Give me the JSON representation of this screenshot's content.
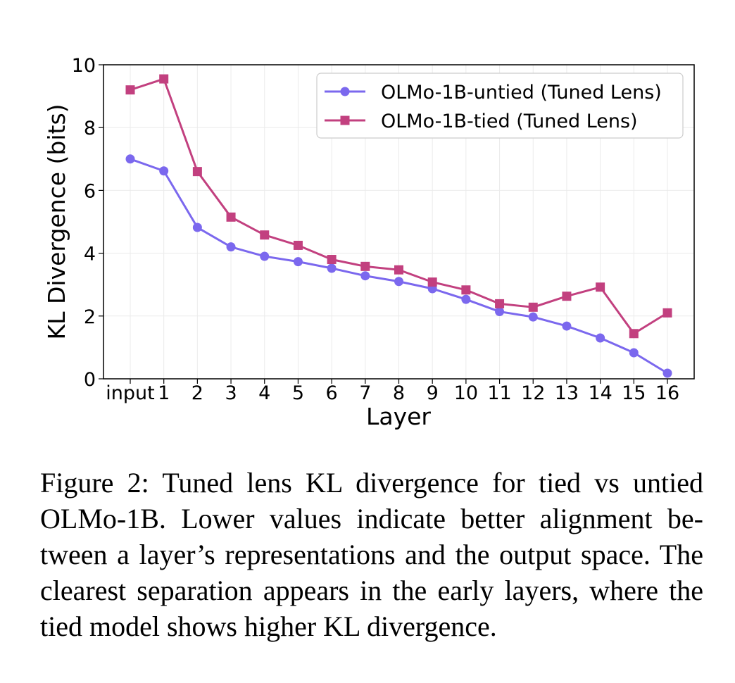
{
  "chart_data": {
    "type": "line",
    "categories": [
      "input",
      "1",
      "2",
      "3",
      "4",
      "5",
      "6",
      "7",
      "8",
      "9",
      "10",
      "11",
      "12",
      "13",
      "14",
      "15",
      "16"
    ],
    "series": [
      {
        "name": "OLMo-1B-untied (Tuned Lens)",
        "color": "#7b68ee",
        "marker": "circle",
        "values": [
          7.0,
          6.62,
          4.82,
          4.2,
          3.9,
          3.73,
          3.52,
          3.28,
          3.1,
          2.87,
          2.53,
          2.14,
          1.97,
          1.68,
          1.3,
          0.83,
          0.18
        ]
      },
      {
        "name": "OLMo-1B-tied (Tuned Lens)",
        "color": "#c2407f",
        "marker": "square",
        "values": [
          9.2,
          9.55,
          6.6,
          5.15,
          4.58,
          4.25,
          3.8,
          3.58,
          3.47,
          3.08,
          2.83,
          2.39,
          2.28,
          2.63,
          2.92,
          1.44,
          2.1
        ]
      }
    ],
    "xlabel": "Layer",
    "ylabel": "KL Divergence (bits)",
    "yticks": [
      0,
      2,
      4,
      6,
      8,
      10
    ],
    "ylim": [
      0,
      10
    ],
    "grid": true,
    "legend": "top-right"
  },
  "caption": "Figure 2: Tuned lens KL divergence for tied vs untied OLMo-1B. Lower values indicate better alignment be­tween a layer’s representations and the output space. The clearest separation appears in the early layers, where the tied model shows higher KL divergence."
}
